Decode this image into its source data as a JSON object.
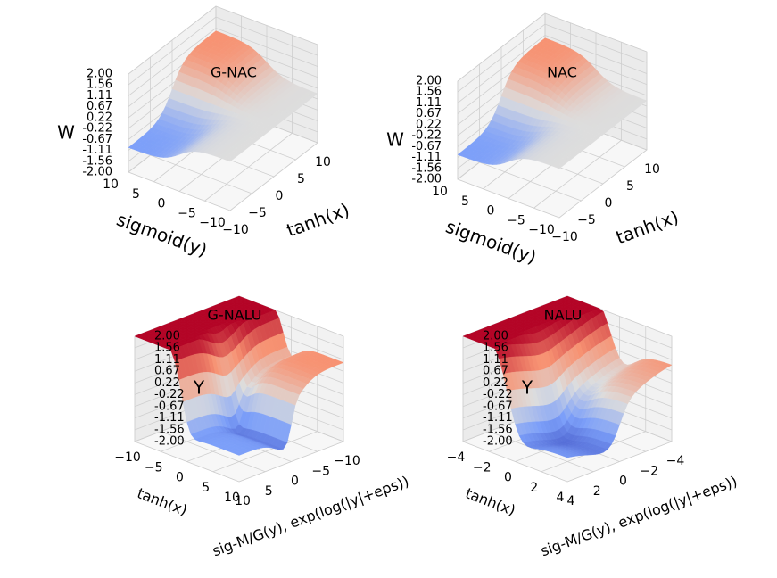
{
  "chart_data": [
    {
      "type": "surface",
      "title": "G-NAC",
      "xlabel": "tanh(x)",
      "ylabel": "sigmoid(y)",
      "zlabel": "W",
      "x_ticks": [
        "−10",
        "−5",
        "0",
        "5",
        "10"
      ],
      "y_ticks": [
        "10",
        "5",
        "0",
        "−5",
        "−10"
      ],
      "z_ticks": [
        "2.00",
        "1.56",
        "1.11",
        "0.67",
        "0.22",
        "-0.22",
        "-0.67",
        "-1.11",
        "-1.56",
        "-2.00"
      ],
      "xlim": [
        -10,
        10
      ],
      "ylim": [
        -10,
        10
      ],
      "zlim": [
        -2.0,
        2.0
      ],
      "surface_range": [
        -1.0,
        1.0
      ],
      "grid": true,
      "colormap": "coolwarm",
      "colors": {
        "low": "#3b4cc0",
        "mid": "#dddddd",
        "high": "#b40426"
      }
    },
    {
      "type": "surface",
      "title": "NAC",
      "xlabel": "tanh(x)",
      "ylabel": "sigmoid(y)",
      "zlabel": "W",
      "x_ticks": [
        "−10",
        "−5",
        "0",
        "5",
        "10"
      ],
      "y_ticks": [
        "10",
        "5",
        "0",
        "−5",
        "−10"
      ],
      "z_ticks": [
        "2.00",
        "1.56",
        "1.11",
        "0.67",
        "0.22",
        "-0.22",
        "-0.67",
        "-1.11",
        "-1.56",
        "-2.00"
      ],
      "xlim": [
        -10,
        10
      ],
      "ylim": [
        -10,
        10
      ],
      "zlim": [
        -2.0,
        2.0
      ],
      "surface_range": [
        -1.0,
        1.0
      ],
      "grid": true,
      "colormap": "coolwarm",
      "colors": {
        "low": "#3b4cc0",
        "mid": "#dddddd",
        "high": "#b40426"
      }
    },
    {
      "type": "surface",
      "title": "G-NALU",
      "xlabel": "tanh(x)",
      "ylabel": "sig-M/G(y), exp(log(|y|+eps))",
      "zlabel": "Y",
      "x_ticks": [
        "10",
        "5",
        "0",
        "−5",
        "−10"
      ],
      "y_ticks": [
        "10",
        "5",
        "0",
        "−5",
        "−10"
      ],
      "z_ticks": [
        "2.00",
        "1.56",
        "1.11",
        "0.67",
        "0.22",
        "-0.22",
        "-0.67",
        "-1.11",
        "-1.56",
        "-2.00"
      ],
      "xlim": [
        -10,
        10
      ],
      "ylim": [
        -10,
        10
      ],
      "zlim": [
        -2.0,
        2.0
      ],
      "grid": true,
      "colormap": "coolwarm",
      "colors": {
        "low": "#3b4cc0",
        "mid": "#dddddd",
        "high": "#b40426"
      }
    },
    {
      "type": "surface",
      "title": "NALU",
      "xlabel": "tanh(x)",
      "ylabel": "sig-M/G(y), exp(log(|y|+eps))",
      "zlabel": "Y",
      "x_ticks": [
        "4",
        "2",
        "0",
        "−2",
        "−4"
      ],
      "y_ticks": [
        "4",
        "2",
        "0",
        "−2",
        "−4"
      ],
      "z_ticks": [
        "2.00",
        "1.56",
        "1.11",
        "0.67",
        "0.22",
        "-0.22",
        "-0.67",
        "-1.11",
        "-1.56",
        "-2.00"
      ],
      "xlim": [
        -5,
        5
      ],
      "ylim": [
        -5,
        5
      ],
      "zlim": [
        -2.0,
        2.0
      ],
      "grid": true,
      "colormap": "coolwarm",
      "colors": {
        "low": "#3b4cc0",
        "mid": "#dddddd",
        "high": "#b40426"
      }
    }
  ]
}
